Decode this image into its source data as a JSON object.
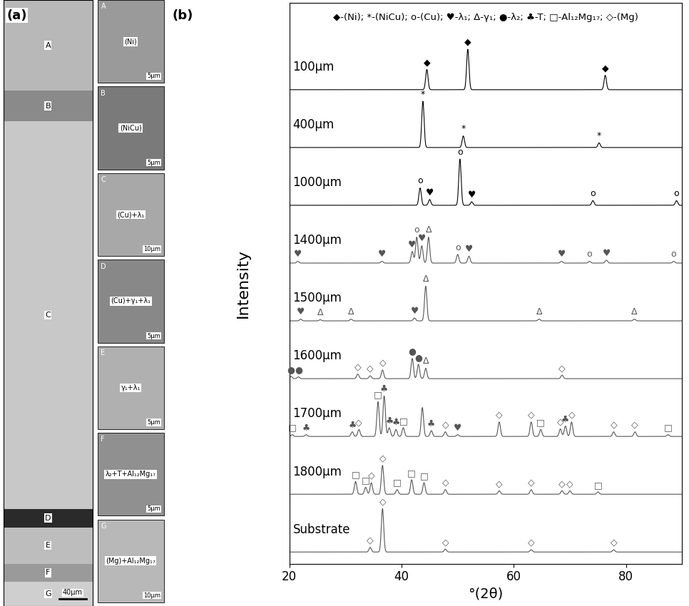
{
  "panel_a": {
    "label": "(a)",
    "zones": [
      "A",
      "B",
      "C",
      "D",
      "E",
      "F",
      "G"
    ],
    "scale_bar": "40μm",
    "insets": [
      {
        "zone": "A",
        "phase": "(Ni)",
        "scale_bar": "5μm"
      },
      {
        "zone": "B",
        "phase": "(NiCu)",
        "scale_bar": "5μm"
      },
      {
        "zone": "C",
        "phase": "(Cu)+λ₁",
        "scale_bar": "10μm"
      },
      {
        "zone": "D",
        "phase": "(Cu)+γ₁+λ₁",
        "scale_bar": "5μm"
      },
      {
        "zone": "E",
        "phase": "γ₁+λ₁",
        "scale_bar": "5μm"
      },
      {
        "zone": "F",
        "phase": "λ₂+T+Al₁₂Mg₁₇",
        "scale_bar": "5μm"
      },
      {
        "zone": "G",
        "phase": "(Mg)+Al₁₂Mg₁₇",
        "scale_bar": "10μm"
      }
    ]
  },
  "chart_data": {
    "type": "line",
    "panel_label": "(b)",
    "key": "◆-(Ni); *-(NiCu); o-(Cu); ♥-λ₁; Δ-γ₁; ●-λ₂; ♣-T; □-Al₁₂Mg₁₇; ◇-(Mg)",
    "xlabel": "°(2θ)",
    "ylabel": "Intensity",
    "xlim": [
      20,
      90
    ],
    "xticks": [
      20,
      40,
      60,
      80
    ],
    "ylim": [
      0,
      97
    ],
    "yticks": [],
    "tick_labels": "x",
    "series": [
      {
        "name": "100μm",
        "color": "#000000",
        "peaks": [
          {
            "x": 44.5,
            "height": 3.5,
            "phase": "◆"
          },
          {
            "x": 51.8,
            "height": 7.0,
            "phase": "◆"
          },
          {
            "x": 76.3,
            "height": 2.5,
            "phase": "◆"
          }
        ]
      },
      {
        "name": "400μm",
        "color": "#000000",
        "peaks": [
          {
            "x": 43.8,
            "height": 8.0,
            "phase": "*"
          },
          {
            "x": 51.0,
            "height": 2.0,
            "phase": "*"
          },
          {
            "x": 75.2,
            "height": 0.8,
            "phase": "*"
          }
        ]
      },
      {
        "name": "1000μm",
        "color": "#000000",
        "peaks": [
          {
            "x": 43.3,
            "height": 3.0,
            "phase": "o"
          },
          {
            "x": 45.0,
            "height": 1.0,
            "phase": "♥"
          },
          {
            "x": 50.4,
            "height": 8.0,
            "phase": "o"
          },
          {
            "x": 52.5,
            "height": 0.6,
            "phase": "♥"
          },
          {
            "x": 74.1,
            "height": 0.8,
            "phase": "o"
          },
          {
            "x": 89.0,
            "height": 0.8,
            "phase": "o"
          }
        ]
      },
      {
        "name": "1400μm",
        "color": "#555555",
        "peaks": [
          {
            "x": 21.5,
            "height": 0.3,
            "phase": "♥"
          },
          {
            "x": 36.5,
            "height": 0.3,
            "phase": "♥"
          },
          {
            "x": 41.9,
            "height": 2.0,
            "phase": "♥"
          },
          {
            "x": 42.7,
            "height": 4.5,
            "phase": "o"
          },
          {
            "x": 43.6,
            "height": 3.0,
            "phase": "♥"
          },
          {
            "x": 44.8,
            "height": 4.5,
            "phase": "Δ"
          },
          {
            "x": 50.0,
            "height": 1.5,
            "phase": "o"
          },
          {
            "x": 52.0,
            "height": 1.2,
            "phase": "♥"
          },
          {
            "x": 68.5,
            "height": 0.3,
            "phase": "♥"
          },
          {
            "x": 73.5,
            "height": 0.3,
            "phase": "o"
          },
          {
            "x": 76.5,
            "height": 0.5,
            "phase": "♥"
          },
          {
            "x": 88.5,
            "height": 0.3,
            "phase": "o"
          }
        ]
      },
      {
        "name": "1500μm",
        "color": "#555555",
        "peaks": [
          {
            "x": 22.0,
            "height": 0.3,
            "phase": "♥"
          },
          {
            "x": 25.5,
            "height": 0.2,
            "phase": "Δ"
          },
          {
            "x": 31.0,
            "height": 0.3,
            "phase": "Δ"
          },
          {
            "x": 42.3,
            "height": 0.5,
            "phase": "♥"
          },
          {
            "x": 44.3,
            "height": 6.0,
            "phase": "Δ"
          },
          {
            "x": 64.5,
            "height": 0.3,
            "phase": "Δ"
          },
          {
            "x": 81.5,
            "height": 0.3,
            "phase": "Δ"
          }
        ]
      },
      {
        "name": "1600μm",
        "color": "#555555",
        "peaks": [
          {
            "x": 20.3,
            "height": 0.4,
            "phase": "●"
          },
          {
            "x": 21.6,
            "height": 0.3,
            "phase": "●"
          },
          {
            "x": 32.2,
            "height": 0.8,
            "phase": "◇"
          },
          {
            "x": 34.4,
            "height": 0.5,
            "phase": "◇"
          },
          {
            "x": 36.6,
            "height": 1.5,
            "phase": "◇"
          },
          {
            "x": 41.9,
            "height": 3.5,
            "phase": "●"
          },
          {
            "x": 43.0,
            "height": 2.5,
            "phase": "●"
          },
          {
            "x": 44.3,
            "height": 1.8,
            "phase": "Δ"
          },
          {
            "x": 68.6,
            "height": 0.6,
            "phase": "◇"
          }
        ]
      },
      {
        "name": "1700μm",
        "color": "#555555",
        "peaks": [
          {
            "x": 20.5,
            "height": 0.3,
            "phase": "□"
          },
          {
            "x": 23.0,
            "height": 0.3,
            "phase": "♣"
          },
          {
            "x": 31.2,
            "height": 0.8,
            "phase": "♣"
          },
          {
            "x": 32.4,
            "height": 1.2,
            "phase": "◇"
          },
          {
            "x": 35.8,
            "height": 6.0,
            "phase": "□"
          },
          {
            "x": 36.9,
            "height": 7.0,
            "phase": "♣"
          },
          {
            "x": 37.8,
            "height": 1.5,
            "phase": "♣"
          },
          {
            "x": 39.0,
            "height": 1.2,
            "phase": "♣"
          },
          {
            "x": 40.3,
            "height": 1.5,
            "phase": "□"
          },
          {
            "x": 43.7,
            "height": 5.0,
            "phase": null
          },
          {
            "x": 45.3,
            "height": 1.0,
            "phase": "♣"
          },
          {
            "x": 47.8,
            "height": 0.8,
            "phase": "◇"
          },
          {
            "x": 50.0,
            "height": 0.3,
            "phase": "♥"
          },
          {
            "x": 57.4,
            "height": 2.5,
            "phase": "◇"
          },
          {
            "x": 63.1,
            "height": 2.5,
            "phase": "◇"
          },
          {
            "x": 64.8,
            "height": 1.2,
            "phase": "□"
          },
          {
            "x": 68.3,
            "height": 1.3,
            "phase": "◇"
          },
          {
            "x": 69.2,
            "height": 1.8,
            "phase": "♣"
          },
          {
            "x": 70.3,
            "height": 2.5,
            "phase": "◇"
          },
          {
            "x": 77.8,
            "height": 0.8,
            "phase": "◇"
          },
          {
            "x": 81.6,
            "height": 0.8,
            "phase": "◇"
          },
          {
            "x": 87.5,
            "height": 0.3,
            "phase": "□"
          }
        ]
      },
      {
        "name": "1800μm",
        "color": "#555555",
        "peaks": [
          {
            "x": 31.8,
            "height": 2.2,
            "phase": "□"
          },
          {
            "x": 33.6,
            "height": 1.2,
            "phase": "□"
          },
          {
            "x": 34.6,
            "height": 2.0,
            "phase": "◇"
          },
          {
            "x": 36.6,
            "height": 5.0,
            "phase": "◇"
          },
          {
            "x": 39.2,
            "height": 0.8,
            "phase": "□"
          },
          {
            "x": 41.8,
            "height": 2.5,
            "phase": "□"
          },
          {
            "x": 44.0,
            "height": 2.0,
            "phase": "□"
          },
          {
            "x": 47.8,
            "height": 0.8,
            "phase": "◇"
          },
          {
            "x": 57.4,
            "height": 0.6,
            "phase": "◇"
          },
          {
            "x": 63.1,
            "height": 0.8,
            "phase": "◇"
          },
          {
            "x": 68.6,
            "height": 0.6,
            "phase": "◇"
          },
          {
            "x": 70.0,
            "height": 0.6,
            "phase": "◇"
          },
          {
            "x": 75.0,
            "height": 0.4,
            "phase": "□"
          }
        ]
      },
      {
        "name": "Substrate",
        "color": "#555555",
        "peaks": [
          {
            "x": 34.4,
            "height": 0.8,
            "phase": "◇"
          },
          {
            "x": 36.6,
            "height": 7.5,
            "phase": "◇"
          },
          {
            "x": 47.8,
            "height": 0.5,
            "phase": "◇"
          },
          {
            "x": 63.1,
            "height": 0.4,
            "phase": "◇"
          },
          {
            "x": 77.8,
            "height": 0.4,
            "phase": "◇"
          }
        ]
      }
    ]
  }
}
